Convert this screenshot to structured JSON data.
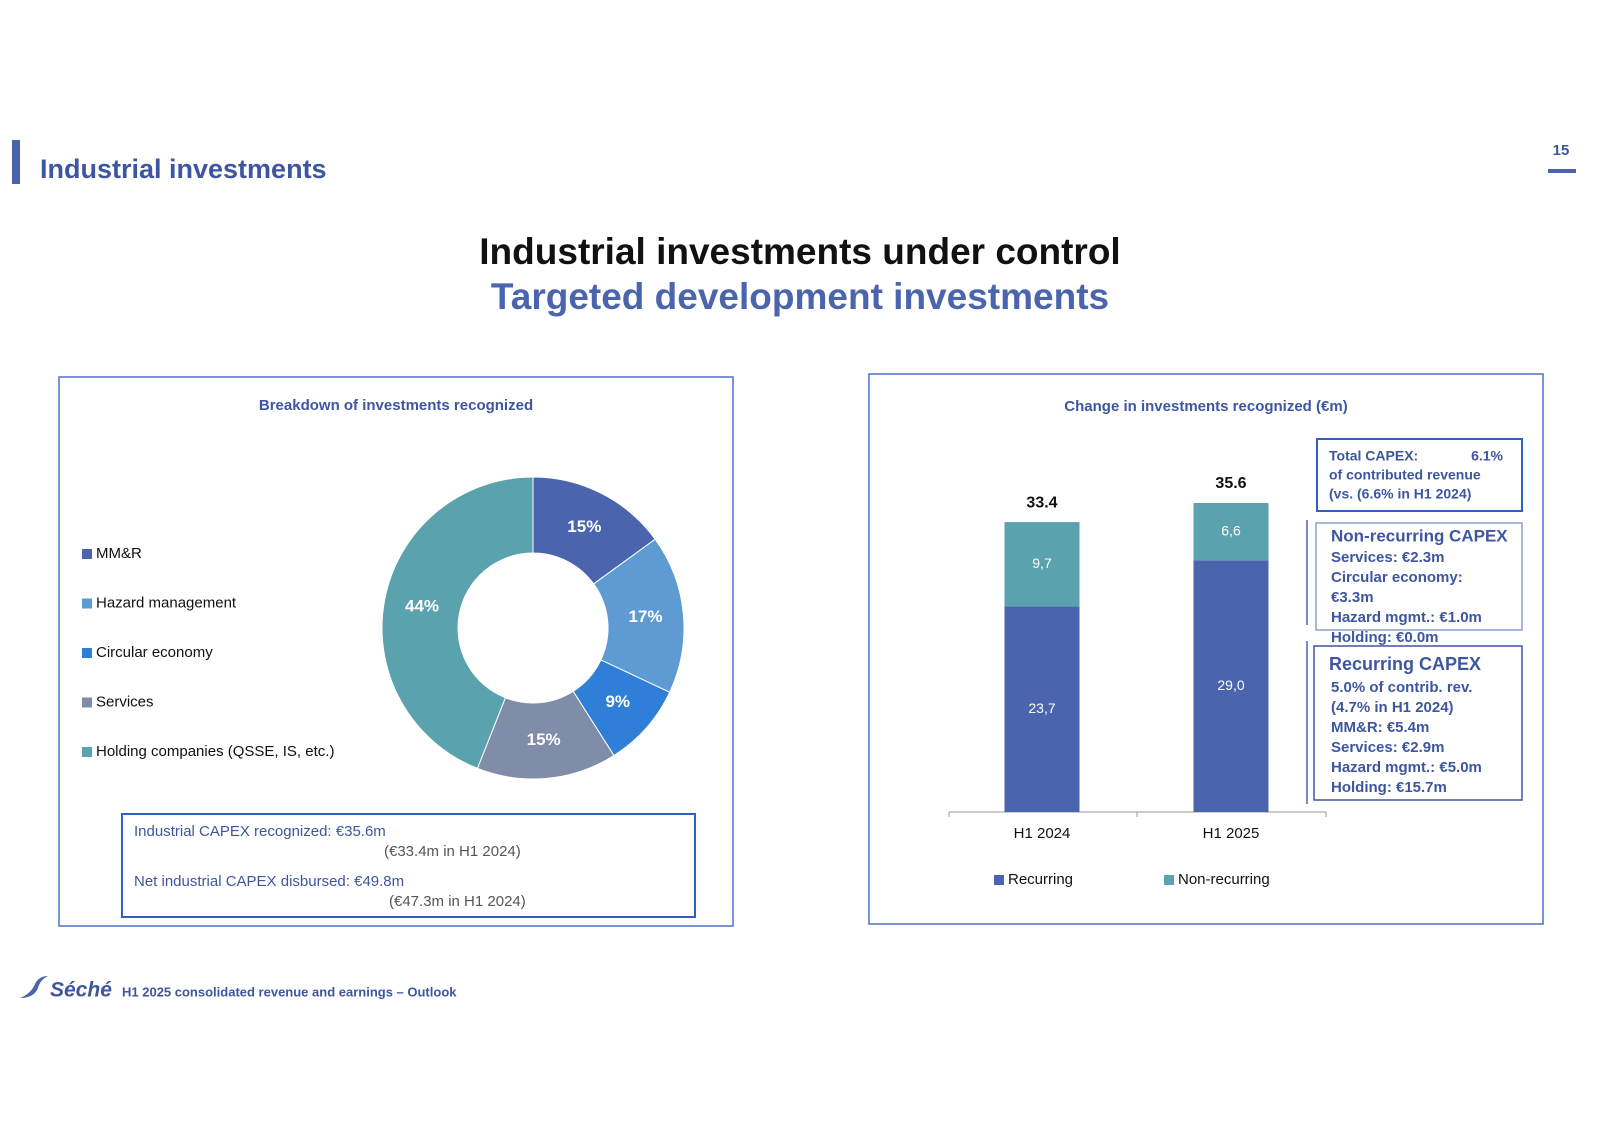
{
  "header": {
    "section_title": "Industrial investments",
    "page_number": "15"
  },
  "title": "Industrial investments under control",
  "subtitle": "Targeted development investments",
  "chart_data": [
    {
      "type": "pie",
      "title": "Breakdown of investments recognized",
      "categories": [
        "MM&R",
        "Hazard management",
        "Circular economy",
        "Services",
        "Holding companies (QSSE, IS, etc.)"
      ],
      "values": [
        15,
        17,
        9,
        15,
        44
      ],
      "value_labels": [
        "15%",
        "17%",
        "9%",
        "15%",
        "44%"
      ],
      "colors": [
        "#4a64ae",
        "#5f9bd3",
        "#2f7fd8",
        "#7f8da8",
        "#5aa2ad"
      ],
      "legend": "left"
    },
    {
      "type": "stacked_bar",
      "title": "Change in investments recognized (€m)",
      "categories": [
        "H1 2024",
        "H1 2025"
      ],
      "series": [
        {
          "name": "Recurring",
          "color": "#4a64ae",
          "values": [
            23.7,
            29.0
          ],
          "value_labels": [
            "23,7",
            "29,0"
          ]
        },
        {
          "name": "Non-recurring",
          "color": "#5aa2ad",
          "values": [
            9.7,
            6.6
          ],
          "value_labels": [
            "9,7",
            "6,6"
          ]
        }
      ],
      "totals": [
        33.4,
        35.6
      ],
      "legend": "bottom"
    }
  ],
  "summary_box": [
    {
      "label": "Industrial CAPEX recognized: €35.6m",
      "comparison": "(€33.4m in H1 2024)"
    },
    {
      "label": "Net industrial CAPEX disbursed: €49.8m",
      "comparison": "(€47.3m in H1 2024)"
    }
  ],
  "total_capex_box": {
    "label": "Total CAPEX:",
    "value": "6.1%",
    "lines": [
      "of contributed revenue",
      "(vs. (6.6% in H1 2024)"
    ]
  },
  "non_recurring_box": {
    "title": "Non-recurring CAPEX",
    "lines": [
      "Services: €2.3m",
      "Circular economy:",
      "€3.3m",
      "Hazard mgmt.: €1.0m",
      "Holding: €0.0m"
    ]
  },
  "recurring_box": {
    "title": "Recurring CAPEX",
    "lines": [
      "5.0% of contrib. rev.",
      "(4.7% in H1 2024)",
      "MM&R: €5.4m",
      "Services: €2.9m",
      "Hazard mgmt.: €5.0m",
      "Holding:  €15.7m"
    ]
  },
  "footer": {
    "logo": "Séché",
    "text": "H1 2025 consolidated revenue and earnings – Outlook"
  }
}
